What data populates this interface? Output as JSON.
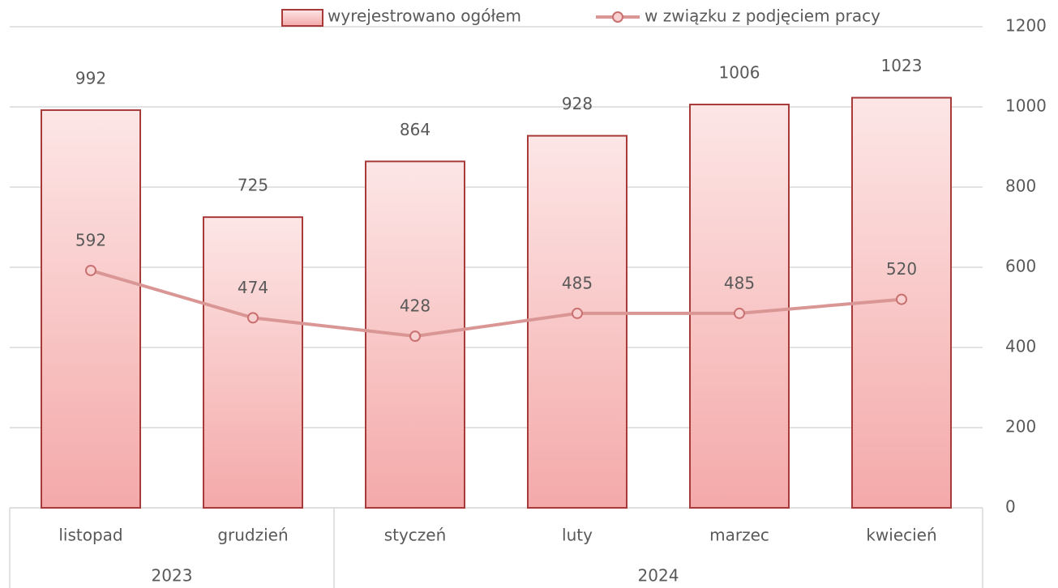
{
  "chart_data": {
    "type": "combo",
    "categories": [
      "listopad",
      "grudzień",
      "styczeń",
      "luty",
      "marzec",
      "kwiecień"
    ],
    "x_groups": [
      {
        "label": "2023",
        "count": 2
      },
      {
        "label": "2024",
        "count": 4
      }
    ],
    "series": [
      {
        "name": "wyrejestrowano ogółem",
        "type": "bar",
        "color": "#f4a9a9",
        "values": [
          992,
          725,
          864,
          928,
          1006,
          1023
        ]
      },
      {
        "name": "w związku z podjęciem pracy",
        "type": "line",
        "color": "#d99694",
        "values": [
          592,
          474,
          428,
          485,
          485,
          520
        ]
      }
    ],
    "ylim": [
      0,
      1200
    ],
    "yticks": [
      0,
      200,
      400,
      600,
      800,
      1000,
      1200
    ],
    "y_axis_side": "right",
    "grid": true,
    "legend": "top"
  }
}
